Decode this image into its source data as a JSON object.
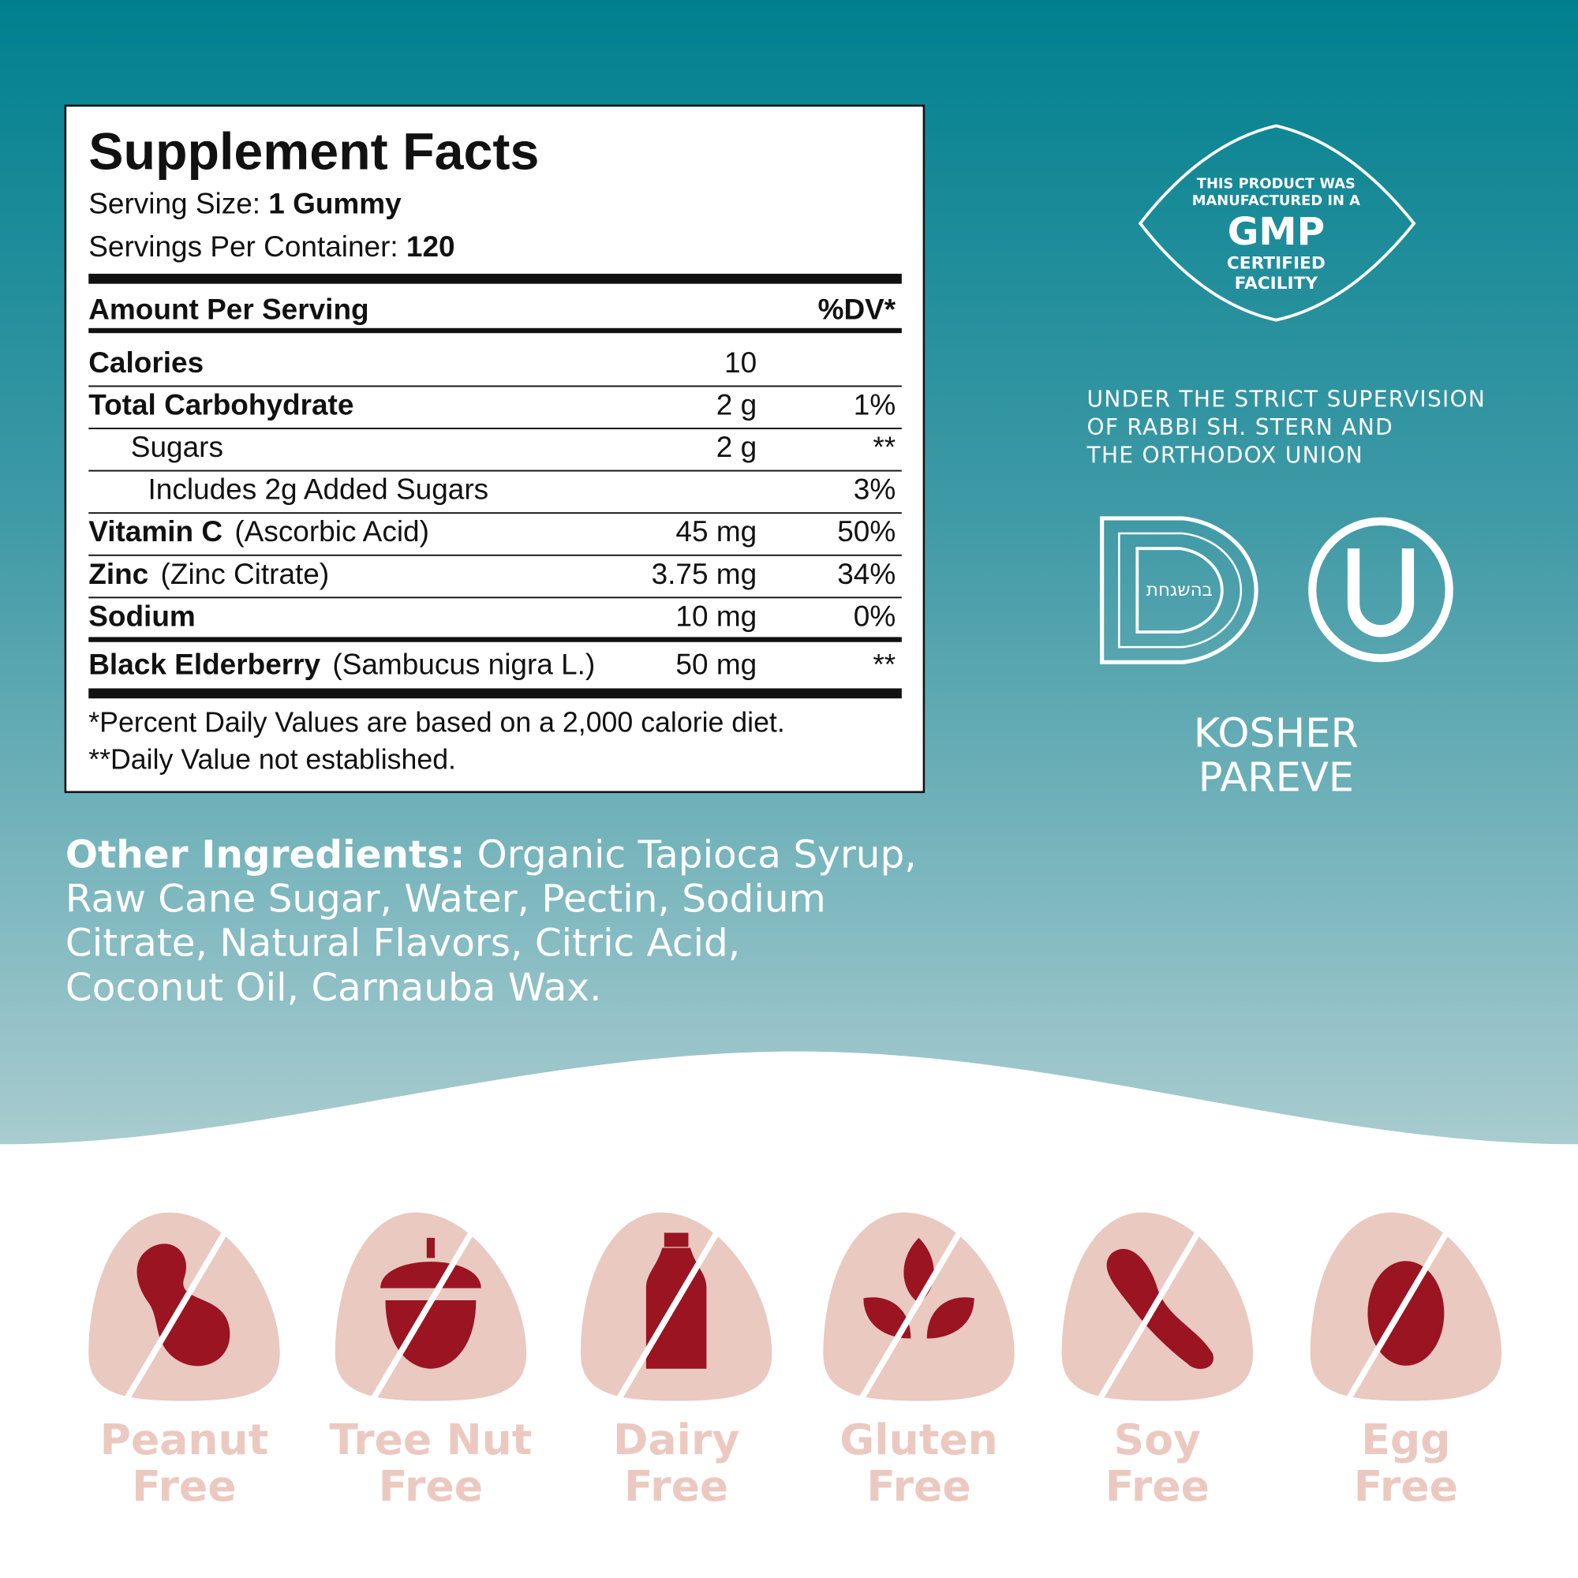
{
  "facts": {
    "title": "Supplement Facts",
    "serving_size_label": "Serving Size:",
    "serving_size_value": "1 Gummy",
    "servings_label": "Servings Per Container:",
    "servings_value": "120",
    "amount_header": "Amount Per Serving",
    "dv_header": "%DV*",
    "rows": [
      {
        "name": "Calories",
        "amount": "10"
      },
      {
        "name": "Total Carbohydrate",
        "amount": "2 g",
        "dv": "1%"
      },
      {
        "name": "Sugars",
        "amount": "2 g",
        "dv": "**"
      },
      {
        "name": "Includes 2g Added Sugars",
        "dv": "3%"
      },
      {
        "name": "Vitamin C",
        "detail": "(Ascorbic Acid)",
        "amount": "45 mg",
        "dv": "50%"
      },
      {
        "name": "Zinc",
        "detail": "(Zinc Citrate)",
        "amount": "3.75 mg",
        "dv": "34%"
      },
      {
        "name": "Sodium",
        "amount": "10 mg",
        "dv": "0%"
      },
      {
        "name": "Black Elderberry",
        "detail": "(Sambucus nigra L.)",
        "amount": "50 mg",
        "dv": "**"
      }
    ],
    "footnotes": [
      "*Percent Daily Values are based on a 2,000 calorie diet.",
      "**Daily Value not established."
    ]
  },
  "ingredients": {
    "label": "Other Ingredients:",
    "lines": [
      "Organic Tapioca Syrup,",
      "Raw Cane Sugar, Water, Pectin, Sodium",
      "Citrate, Natural Flavors, Citric Acid,",
      "Coconut Oil, Carnauba Wax."
    ]
  },
  "gmp": {
    "lines": [
      "THIS PRODUCT WAS",
      "MANUFACTURED IN A",
      "GMP",
      "CERTIFIED",
      "FACILITY"
    ]
  },
  "supervision": {
    "lines": [
      "UNDER THE STRICT SUPERVISION",
      "OF RABBI SH. STERN AND",
      "THE ORTHODOX UNION"
    ]
  },
  "kosher": {
    "seal_text": "בהשגחת",
    "lines": [
      "KOSHER",
      "PAREVE"
    ]
  },
  "allergens": [
    {
      "lines": [
        "Peanut",
        "Free"
      ]
    },
    {
      "lines": [
        "Tree Nut",
        "Free"
      ]
    },
    {
      "lines": [
        "Dairy",
        "Free"
      ]
    },
    {
      "lines": [
        "Gluten",
        "Free"
      ]
    },
    {
      "lines": [
        "Soy",
        "Free"
      ]
    },
    {
      "lines": [
        "Egg",
        "Free"
      ]
    }
  ]
}
